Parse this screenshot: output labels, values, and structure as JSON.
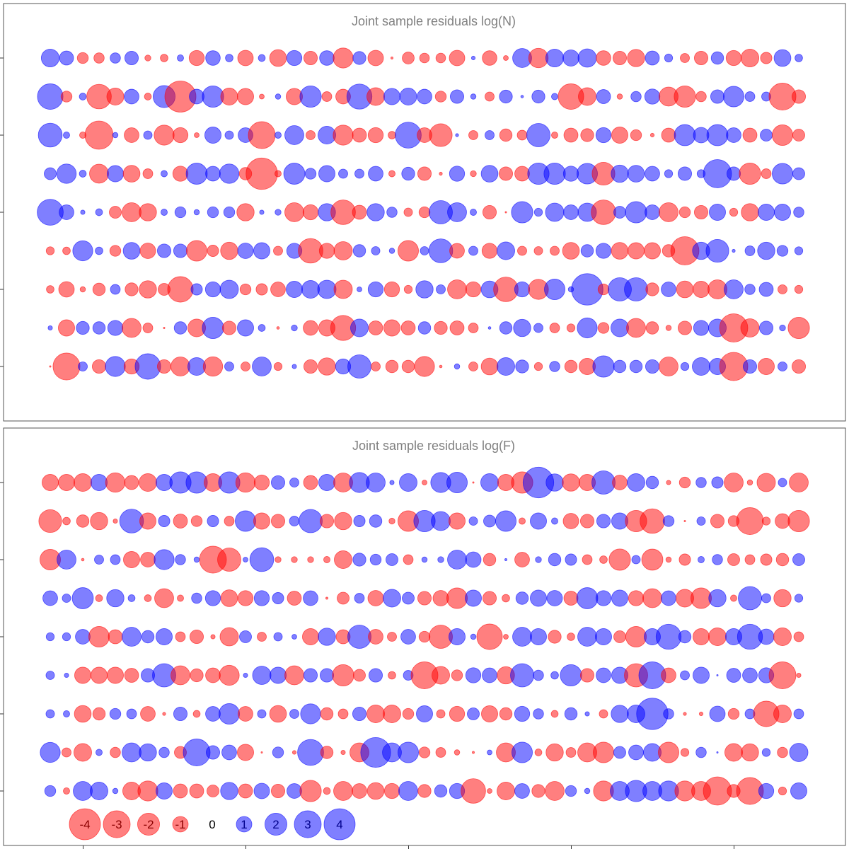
{
  "chart_data": [
    {
      "type": "bubble",
      "title": "Joint sample residuals log(N)",
      "colors": {
        "positive": "#0000ff",
        "negative": "#ff0000"
      },
      "fill_opacity": 0.5,
      "size_encoding": "area proportional to |residual|",
      "rows": [
        [
          1.32,
          0.82,
          -0.5,
          -0.44,
          0.44,
          0.76,
          -0.15,
          -0.24,
          0.17,
          -0.95,
          0.88,
          0.24,
          -1.0,
          0.2,
          -1.17,
          0.95,
          -0.76,
          0.88,
          -1.66,
          0.7,
          -1.0,
          -0.02,
          -0.59,
          -0.39,
          -0.39,
          -1.0,
          0.06,
          -0.88,
          -0.1,
          1.49,
          -1.57,
          1.32,
          1.09,
          1.4,
          -0.88,
          -0.76,
          -1.24,
          0.82,
          0.27,
          -0.35,
          -0.76,
          0.64,
          -0.95,
          -1.32,
          -0.54,
          1.17,
          0.24
        ],
        [
          2.7,
          -0.5,
          0.2,
          -2.5,
          -1.2,
          0.9,
          -0.2,
          2.0,
          -4.0,
          0.9,
          1.9,
          -1.2,
          -1.1,
          -0.1,
          0.12,
          -1.1,
          1.9,
          -0.4,
          -0.9,
          2.6,
          -1.3,
          1.1,
          1.2,
          0.9,
          -0.5,
          0.76,
          0.12,
          -0.35,
          0.7,
          0.03,
          0.7,
          0.17,
          -2.7,
          -1.3,
          0.82,
          -0.12,
          0.44,
          0.95,
          -1.5,
          -1.9,
          -0.44,
          0.76,
          1.75,
          0.4,
          0.35,
          -3.0,
          -0.76
        ],
        [
          2.35,
          0.17,
          -0.17,
          -3.3,
          0.12,
          -0.9,
          0.3,
          -1.66,
          -0.95,
          -0.1,
          1.1,
          0.3,
          0.9,
          -3.0,
          0.17,
          1.5,
          -0.35,
          1.3,
          -1.66,
          -0.82,
          -0.95,
          -0.24,
          2.8,
          -0.9,
          -2.15,
          0.04,
          -0.35,
          0.35,
          -0.64,
          -0.4,
          2.25,
          -0.17,
          -0.82,
          -0.7,
          0.95,
          -1.1,
          -0.5,
          -0.06,
          -0.82,
          1.85,
          1.0,
          1.85,
          0.9,
          -0.82,
          0.6,
          -1.75,
          -0.6
        ],
        [
          0.6,
          1.57,
          0.2,
          -1.5,
          1.1,
          -1.17,
          -0.4,
          0.17,
          -0.95,
          1.85,
          0.9,
          1.57,
          -0.64,
          -4.1,
          -0.17,
          1.85,
          0.5,
          1.1,
          0.35,
          0.35,
          0.9,
          -0.17,
          0.7,
          -0.76,
          -0.04,
          0.95,
          -0.15,
          1.17,
          -0.76,
          -0.9,
          1.9,
          1.9,
          0.95,
          1.75,
          -2.15,
          1.24,
          1.17,
          0.9,
          0.27,
          0.76,
          0.27,
          3.3,
          0.76,
          -1.9,
          -0.4,
          1.75,
          0.6
        ],
        [
          2.8,
          0.9,
          0.08,
          0.2,
          -0.6,
          -1.5,
          -1.24,
          0.17,
          0.5,
          0.12,
          0.5,
          0.5,
          -1.24,
          0.08,
          0.15,
          -1.5,
          -0.95,
          1.24,
          -2.5,
          -0.82,
          1.24,
          0.44,
          -0.3,
          -0.5,
          2.25,
          1.5,
          0.17,
          -0.76,
          -0.01,
          1.9,
          0.27,
          1.4,
          0.9,
          1.4,
          -2.5,
          0.6,
          1.9,
          0.9,
          -1.5,
          -0.5,
          -0.76,
          1.1,
          -0.27,
          -1.24,
          1.1,
          1.1,
          0.44
        ],
        [
          -0.27,
          -0.24,
          1.66,
          0.24,
          -0.5,
          1.17,
          -1.0,
          0.76,
          0.76,
          -1.75,
          -0.54,
          -1.24,
          1.0,
          1.1,
          -0.35,
          0.95,
          -2.5,
          -0.95,
          -1.4,
          0.64,
          0.3,
          0.12,
          -1.75,
          0.3,
          2.35,
          -0.9,
          0.35,
          -0.95,
          1.3,
          -0.35,
          -0.3,
          -0.35,
          -1.17,
          0.64,
          0.95,
          -1.17,
          -1.1,
          -1.1,
          -0.64,
          -3.3,
          1.24,
          2.15,
          0.04,
          0.4,
          1.24,
          0.5,
          0.27
        ],
        [
          -0.24,
          -1.0,
          -0.12,
          -0.64,
          0.4,
          -0.7,
          -1.24,
          -0.6,
          -2.7,
          0.54,
          0.95,
          1.4,
          -0.5,
          -0.54,
          -0.9,
          1.1,
          1.3,
          1.4,
          -1.4,
          0.1,
          0.95,
          -0.95,
          -0.27,
          1.24,
          0.35,
          -1.5,
          -0.95,
          1.17,
          -2.5,
          0.95,
          -1.66,
          1.75,
          0.12,
          4.1,
          -0.5,
          2.25,
          2.25,
          -0.7,
          0.9,
          -1.17,
          -1.1,
          -1.5,
          1.5,
          0.44,
          0.82,
          -0.35,
          -0.27
        ],
        [
          0.08,
          -1.1,
          0.7,
          0.64,
          0.95,
          -1.5,
          -0.4,
          -0.01,
          0.64,
          -1.3,
          1.9,
          -0.76,
          1.1,
          0.2,
          -0.03,
          0.15,
          -0.9,
          -1.1,
          -2.6,
          1.3,
          -0.82,
          -1.1,
          -0.82,
          0.64,
          -0.7,
          -0.82,
          -0.4,
          0.03,
          0.64,
          1.24,
          0.35,
          -0.4,
          -0.27,
          1.66,
          -0.5,
          1.3,
          -1.5,
          -0.64,
          -0.12,
          -0.76,
          0.95,
          1.3,
          -3.3,
          -1.4,
          0.76,
          0.15,
          -1.9
        ],
        [
          -0.01,
          -3.0,
          0.35,
          -0.76,
          1.66,
          -0.95,
          2.7,
          -0.76,
          -1.5,
          1.3,
          -1.57,
          0.35,
          -0.35,
          1.5,
          -0.27,
          0.08,
          -0.76,
          -1.24,
          0.95,
          2.25,
          -0.35,
          -0.64,
          -0.64,
          -1.66,
          -0.03,
          0.12,
          -0.35,
          -1.17,
          1.3,
          0.7,
          -0.27,
          0.44,
          -0.64,
          -1.1,
          1.9,
          0.64,
          0.64,
          0.76,
          -1.5,
          0.27,
          1.3,
          1.1,
          -3.3,
          0.76,
          -1.1,
          0.35,
          -0.76
        ]
      ]
    },
    {
      "type": "bubble",
      "title": "Joint sample residuals log(F)",
      "colors": {
        "positive": "#0000ff",
        "negative": "#ff0000"
      },
      "fill_opacity": 0.5,
      "size_encoding": "area proportional to |residual|",
      "rows": [
        [
          -1.1,
          -1.1,
          -1.3,
          1.1,
          -1.57,
          -0.82,
          -1.3,
          1.1,
          1.9,
          1.9,
          -1.3,
          1.9,
          -1.57,
          -0.95,
          0.76,
          0.35,
          -0.82,
          1.1,
          -1.5,
          1.66,
          1.5,
          0.08,
          1.3,
          -0.1,
          1.66,
          1.75,
          -0.01,
          1.3,
          -1.1,
          -1.9,
          3.9,
          1.24,
          -1.24,
          -1.1,
          2.25,
          -0.9,
          1.3,
          0.64,
          -0.08,
          -0.5,
          0.44,
          0.54,
          -1.5,
          -0.12,
          -1.4,
          0.3,
          -1.5
        ],
        [
          -2.15,
          -0.24,
          -0.64,
          -1.24,
          -0.08,
          2.35,
          -1.1,
          0.54,
          -0.82,
          -0.5,
          0.54,
          -0.4,
          1.75,
          -1.1,
          -0.76,
          0.4,
          2.25,
          -0.76,
          -1.24,
          0.54,
          0.64,
          -0.15,
          -1.75,
          1.9,
          1.5,
          -1.1,
          0.3,
          0.6,
          1.75,
          -0.17,
          1.1,
          0.17,
          -1.0,
          -0.76,
          0.76,
          1.1,
          -1.9,
          -2.5,
          0.5,
          -0.01,
          0.3,
          -0.76,
          -0.5,
          -3.0,
          -0.27,
          -0.9,
          -1.9
        ],
        [
          -1.75,
          1.5,
          -0.03,
          0.35,
          0.4,
          -1.1,
          -0.9,
          1.66,
          0.44,
          0.12,
          -3.0,
          -2.25,
          0.1,
          2.35,
          -0.15,
          -0.15,
          -0.15,
          -0.17,
          -1.3,
          0.7,
          0.5,
          0.6,
          -0.4,
          0.12,
          0.15,
          1.5,
          1.0,
          -0.64,
          0.02,
          -0.9,
          0.15,
          0.64,
          0.54,
          -0.4,
          -0.24,
          -1.9,
          0.3,
          -1.85,
          -0.12,
          -0.54,
          0.17,
          0.44,
          -0.6,
          -0.4,
          -0.54,
          -0.64,
          0.6
        ],
        [
          0.9,
          0.3,
          1.85,
          -0.2,
          1.24,
          0.2,
          -0.2,
          -1.5,
          -0.17,
          0.44,
          0.95,
          -1.17,
          -0.95,
          0.95,
          0.54,
          -0.82,
          0.9,
          -0.02,
          -0.6,
          0.4,
          -1.0,
          1.3,
          0.6,
          -0.76,
          -1.0,
          -1.75,
          1.1,
          -0.76,
          -0.24,
          0.64,
          1.1,
          1.0,
          -0.82,
          1.85,
          0.95,
          1.1,
          -0.95,
          -1.5,
          0.9,
          -1.3,
          -1.75,
          1.24,
          -0.17,
          2.25,
          0.35,
          -1.24,
          0.27
        ],
        [
          0.27,
          0.27,
          0.9,
          -1.75,
          -0.82,
          1.5,
          0.64,
          1.1,
          -0.4,
          -0.76,
          -0.08,
          -1.4,
          0.6,
          -0.35,
          0.3,
          0.1,
          -1.1,
          1.24,
          -0.82,
          2.25,
          -0.9,
          -0.35,
          0.9,
          -0.5,
          -2.25,
          1.1,
          0.12,
          -2.7,
          -0.1,
          1.5,
          1.1,
          -0.7,
          -0.24,
          1.5,
          1.1,
          -0.6,
          -1.75,
          1.1,
          2.6,
          0.64,
          -1.1,
          -1.3,
          1.1,
          2.6,
          1.0,
          -1.3,
          -0.4
        ],
        [
          0.3,
          0.08,
          -1.1,
          -1.1,
          -1.1,
          -0.82,
          0.76,
          2.25,
          -1.5,
          -0.7,
          -0.9,
          -1.66,
          0.08,
          1.4,
          1.1,
          -1.5,
          0.76,
          0.76,
          -1.9,
          -0.6,
          0.76,
          -0.24,
          0.4,
          -3.0,
          -1.3,
          -0.5,
          0.95,
          0.9,
          -1.24,
          2.25,
          0.44,
          0.24,
          1.9,
          -0.76,
          0.9,
          1.1,
          -2.25,
          3.0,
          -0.9,
          0.35,
          1.1,
          0.01,
          0.82,
          0.9,
          0.95,
          -3.0,
          -0.08
        ],
        [
          0.3,
          0.17,
          -1.17,
          -0.64,
          0.5,
          0.4,
          -0.9,
          -0.04,
          0.76,
          -0.2,
          0.9,
          1.75,
          -0.9,
          0.3,
          -1.17,
          0.35,
          1.66,
          -0.64,
          -0.4,
          0.76,
          -1.3,
          -1.3,
          -0.5,
          1.1,
          -0.3,
          -0.95,
          0.6,
          -1.1,
          -0.64,
          0.95,
          0.44,
          -0.2,
          0.64,
          0.08,
          -0.3,
          1.24,
          1.3,
          4.1,
          0.44,
          -0.04,
          -0.06,
          1.0,
          -0.5,
          0.4,
          -2.7,
          -1.3,
          0.4
        ],
        [
          1.66,
          -0.35,
          -1.3,
          0.17,
          -0.44,
          1.5,
          1.24,
          0.44,
          -0.6,
          3.0,
          0.76,
          0.9,
          -1.1,
          -0.01,
          0.5,
          -0.06,
          2.8,
          -0.64,
          -0.08,
          -1.5,
          3.7,
          1.5,
          1.75,
          -0.5,
          -0.4,
          -0.12,
          -0.02,
          0.1,
          -1.5,
          1.75,
          -0.2,
          -1.24,
          -0.4,
          -1.5,
          -1.75,
          0.6,
          0.9,
          1.3,
          -1.75,
          -0.27,
          0.44,
          0.01,
          -1.3,
          -1.24,
          0.27,
          -0.44,
          1.4
        ],
        [
          0.5,
          -0.17,
          1.5,
          1.3,
          0.12,
          -1.3,
          -1.66,
          1.1,
          -0.82,
          -0.82,
          -0.6,
          1.24,
          -0.82,
          1.0,
          -0.76,
          0.9,
          -1.9,
          -0.2,
          -1.5,
          -0.9,
          -1.17,
          -0.95,
          1.5,
          -0.7,
          0.64,
          0.95,
          -2.5,
          -0.1,
          -1.3,
          0.9,
          -0.7,
          -1.5,
          0.5,
          0.12,
          -1.66,
          1.5,
          1.9,
          1.5,
          1.66,
          -1.66,
          -1.5,
          -3.3,
          -0.7,
          -3.0,
          0.95,
          -0.27,
          1.1
        ]
      ],
      "legend": {
        "entries": [
          {
            "label": "-4",
            "value": -4
          },
          {
            "label": "-3",
            "value": -3
          },
          {
            "label": "-2",
            "value": -2
          },
          {
            "label": "-1",
            "value": -1
          },
          {
            "label": "0",
            "value": 0
          },
          {
            "label": "1",
            "value": 1
          },
          {
            "label": "2",
            "value": 2
          },
          {
            "label": "3",
            "value": 3
          },
          {
            "label": "4",
            "value": 4
          }
        ],
        "placement": "bottom-left",
        "label_colors": {
          "negative": "#8b0000",
          "positive": "#00008b",
          "zero": "#000000"
        }
      }
    }
  ]
}
